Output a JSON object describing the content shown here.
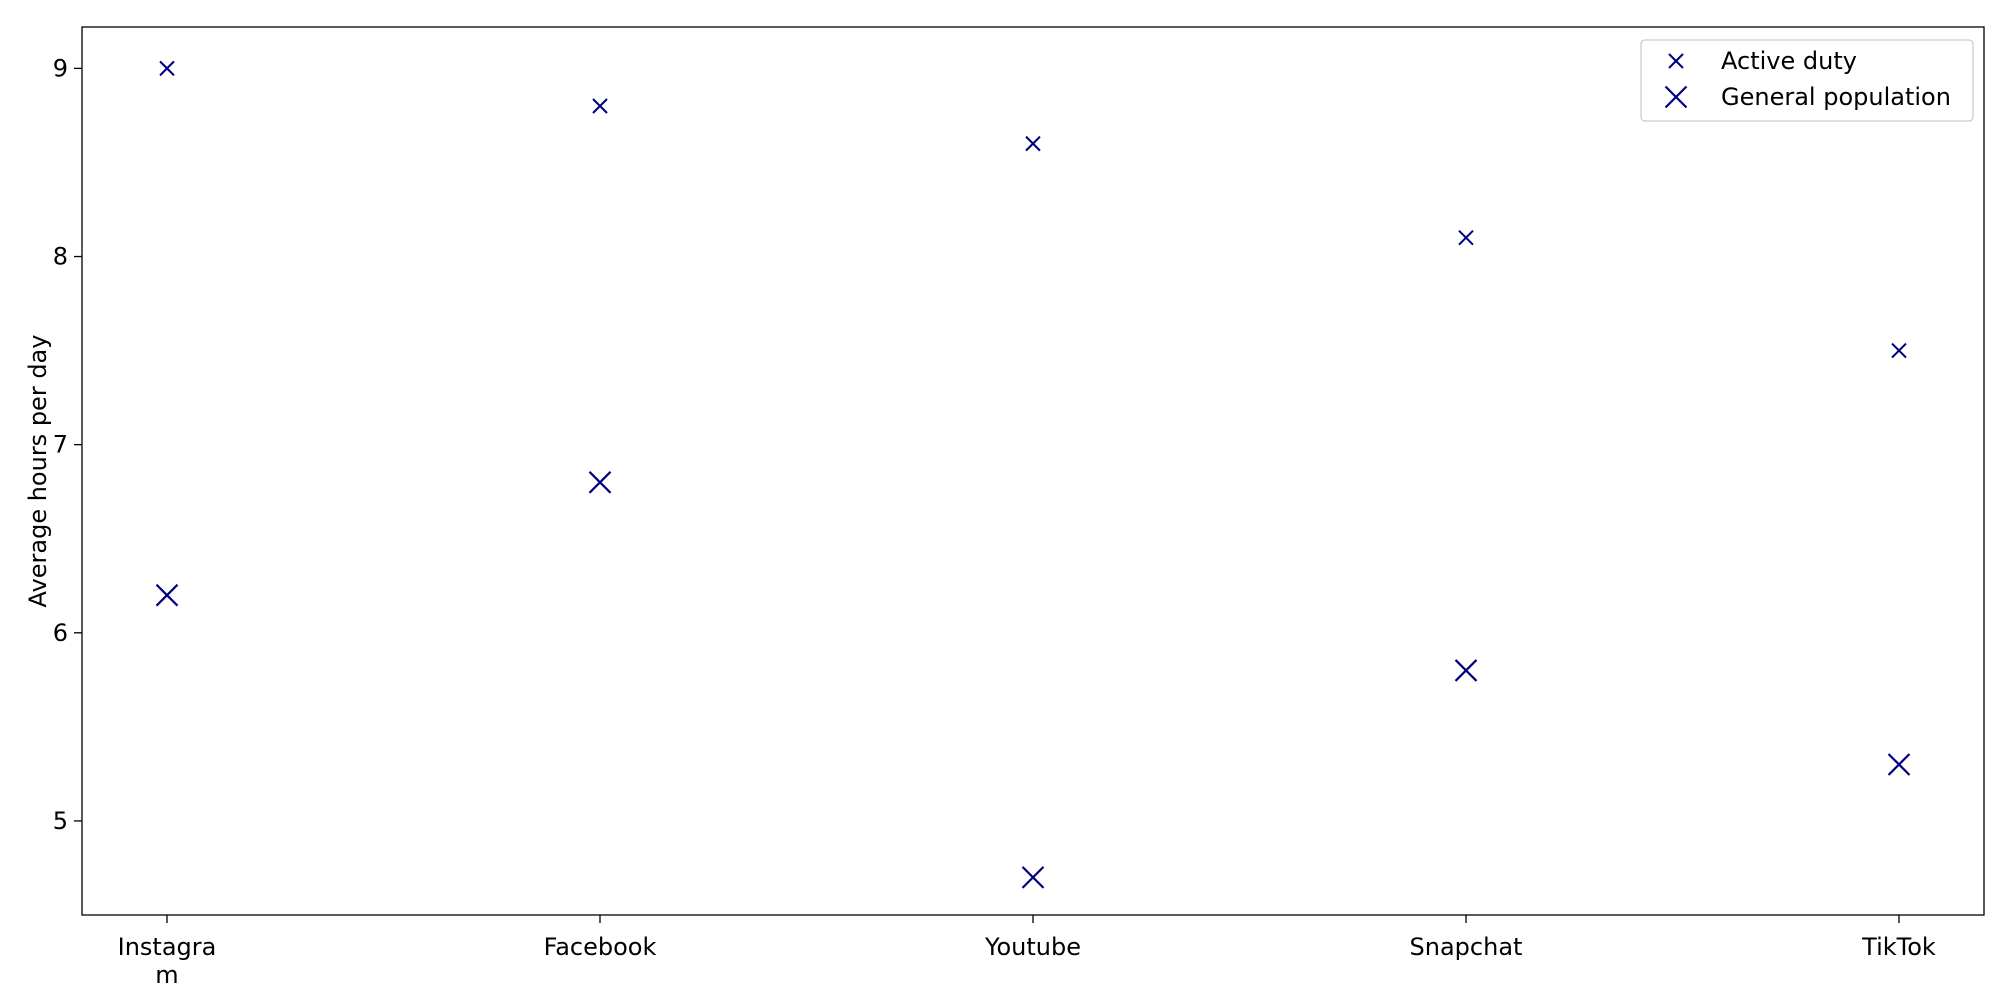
{
  "chart_data": {
    "type": "scatter",
    "categories": [
      "Instagra\nm",
      "Facebook",
      "Youtube",
      "Snapchat",
      "TikTok"
    ],
    "series": [
      {
        "name": "Active duty",
        "marker": "x",
        "values": [
          9.0,
          8.8,
          8.6,
          8.1,
          7.5
        ]
      },
      {
        "name": "General population",
        "marker": "X",
        "values": [
          6.2,
          6.8,
          4.7,
          5.8,
          5.3
        ]
      }
    ],
    "title": "",
    "xlabel": "",
    "ylabel": "Average hours per day",
    "ylim": [
      4.5,
      9.22
    ],
    "yticks": [
      5,
      6,
      7,
      8,
      9
    ],
    "grid": false,
    "legend_position": "top-right",
    "colors": {
      "marker": "#00007f",
      "axis": "#000000",
      "legend_border": "#cccccc"
    }
  }
}
